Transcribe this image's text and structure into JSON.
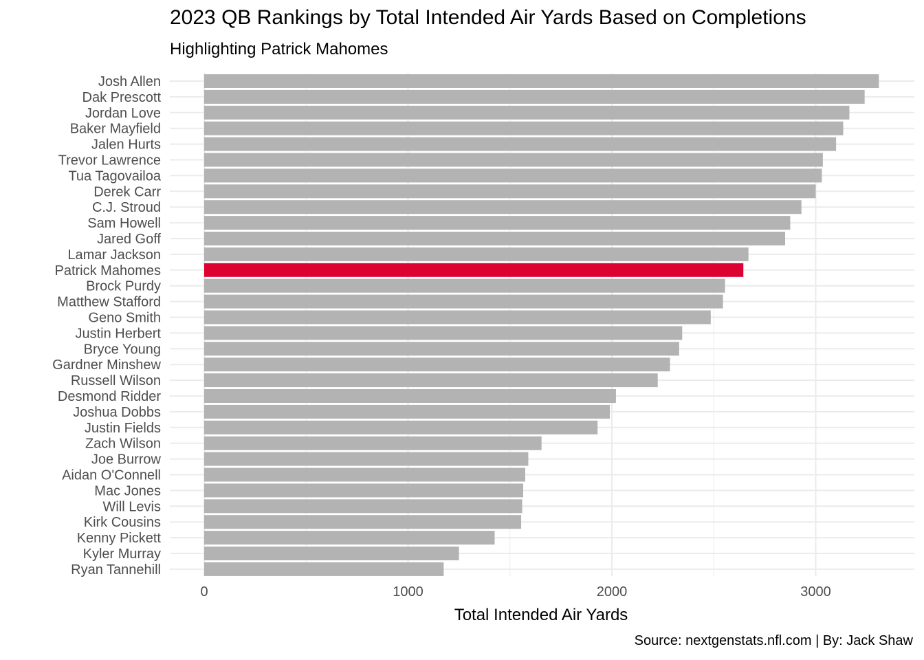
{
  "chart_data": {
    "type": "bar",
    "orientation": "horizontal",
    "title": "2023 QB Rankings by Total Intended Air Yards Based on Completions",
    "subtitle": "Highlighting Patrick Mahomes",
    "caption": "Source: nextgenstats.nfl.com | By: Jack Shaw",
    "xlabel": "Total Intended Air Yards",
    "ylabel": "",
    "xlim": [
      0,
      3400
    ],
    "x_ticks": [
      0,
      1000,
      2000,
      3000
    ],
    "grid": true,
    "highlight": "Patrick Mahomes",
    "colors": {
      "default_bar": "#b3b3b3",
      "highlight_bar": "#dc0332",
      "grid": "#ebebeb"
    },
    "categories": [
      "Josh Allen",
      "Dak Prescott",
      "Jordan Love",
      "Baker Mayfield",
      "Jalen Hurts",
      "Trevor Lawrence",
      "Tua Tagovailoa",
      "Derek Carr",
      "C.J. Stroud",
      "Sam Howell",
      "Jared Goff",
      "Lamar Jackson",
      "Patrick Mahomes",
      "Brock Purdy",
      "Matthew Stafford",
      "Geno Smith",
      "Justin Herbert",
      "Bryce Young",
      "Gardner Minshew",
      "Russell Wilson",
      "Desmond Ridder",
      "Joshua Dobbs",
      "Justin Fields",
      "Zach Wilson",
      "Joe Burrow",
      "Aidan O'Connell",
      "Mac Jones",
      "Will Levis",
      "Kirk Cousins",
      "Kenny Pickett",
      "Kyler Murray",
      "Ryan Tannehill"
    ],
    "values": [
      3310,
      3240,
      3165,
      3135,
      3100,
      3035,
      3030,
      3000,
      2930,
      2875,
      2850,
      2670,
      2645,
      2555,
      2545,
      2485,
      2345,
      2330,
      2285,
      2225,
      2020,
      1990,
      1930,
      1655,
      1590,
      1575,
      1565,
      1560,
      1555,
      1425,
      1250,
      1175
    ]
  }
}
